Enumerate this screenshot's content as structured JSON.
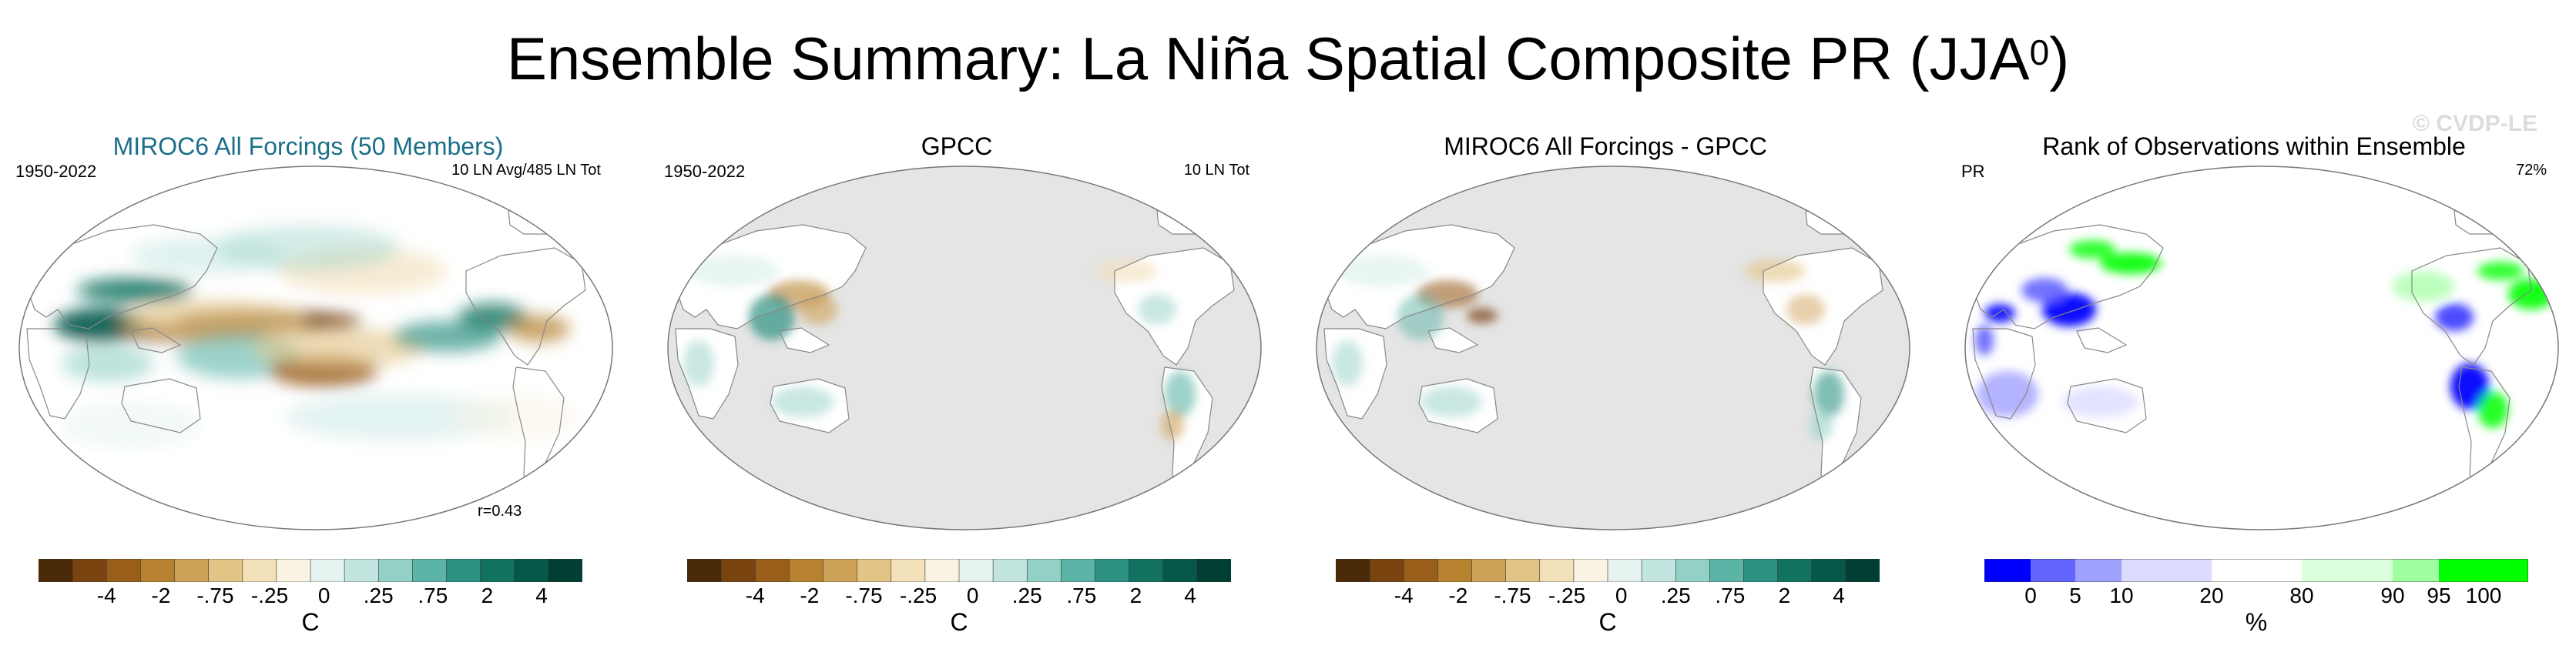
{
  "title": {
    "main": "Ensemble Summary: La Niña Spatial Composite PR (JJA",
    "sup": "0",
    "close": ")"
  },
  "watermark": "© CVDP-LE",
  "colors": {
    "title_accent": "#1b6f8a",
    "diverging": [
      "#4a2a09",
      "#7a4410",
      "#9a5e1b",
      "#b7822f",
      "#cfa259",
      "#e3c487",
      "#f1e0b8",
      "#faf3e3",
      "#e6f3f1",
      "#c2e5e0",
      "#93d0c6",
      "#5cb4a6",
      "#2e9282",
      "#11735f",
      "#06584a",
      "#023f33"
    ],
    "rank": [
      "#0000ff",
      "#6464ff",
      "#a0a0ff",
      "#dcdcff",
      "#ffffff",
      "#dcffdc",
      "#a0ffa0",
      "#00ff00"
    ],
    "ocean_gray": "#e5e5e5",
    "outline": "#888888"
  },
  "panels": [
    {
      "title": "MIROC6 All Forcings (50 Members)",
      "title_color": "accent",
      "left_label": "1950-2022",
      "right_label": "10 LN Avg/485 LN Tot",
      "stat": "r=0.43",
      "map_kind": "model",
      "colorbar": "diverging"
    },
    {
      "title": "GPCC",
      "title_color": "black",
      "left_label": "1950-2022",
      "right_label": "10 LN Tot",
      "stat": "",
      "map_kind": "obs",
      "colorbar": "diverging"
    },
    {
      "title": "MIROC6 All Forcings - GPCC",
      "title_color": "black",
      "left_label": "",
      "right_label": "",
      "stat": "",
      "map_kind": "diff",
      "colorbar": "diverging"
    },
    {
      "title": "Rank of Observations within Ensemble",
      "title_color": "black",
      "left_label": "PR",
      "right_label": "72%",
      "stat": "",
      "map_kind": "rank",
      "colorbar": "rank"
    }
  ],
  "colorbars": {
    "diverging": {
      "ticks": [
        "-4",
        "-2",
        "-.75",
        "-.25",
        "0",
        ".25",
        ".75",
        "2",
        "4"
      ],
      "unit": "C"
    },
    "rank": {
      "ticks": [
        "0",
        "5",
        "10",
        "20",
        "80",
        "90",
        "95",
        "100"
      ],
      "unit": "%"
    }
  }
}
